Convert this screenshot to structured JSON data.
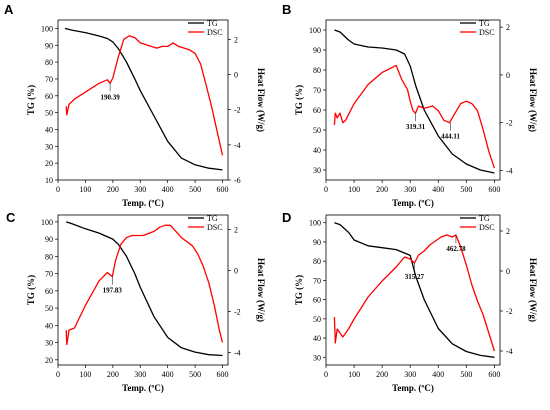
{
  "chart_data": [
    {
      "type": "line",
      "panel": "A",
      "xlabel": "Temp. (ºC)",
      "ylabel_left": "TG (%)",
      "ylabel_right": "Heat Flow (W/g)",
      "x_ticks": [
        "0",
        "100",
        "200",
        "300",
        "400",
        "500",
        "600"
      ],
      "y_left_ticks": [
        "10",
        "20",
        "30",
        "40",
        "50",
        "60",
        "70",
        "80",
        "90",
        "100"
      ],
      "y_right_ticks": [
        "2",
        "0",
        "-2",
        "-4",
        "-6"
      ],
      "xlim": [
        0,
        620
      ],
      "ylim_left": [
        10,
        105
      ],
      "ylim_right": [
        -6,
        3.1
      ],
      "legend": [
        "TG",
        "DSC"
      ],
      "legend_position": "top-right",
      "colors": {
        "TG": "#000000",
        "DSC": "#ff0000"
      },
      "series": [
        {
          "name": "TG",
          "axis": "left",
          "x": [
            25,
            50,
            100,
            150,
            180,
            200,
            220,
            250,
            280,
            300,
            350,
            400,
            450,
            500,
            550,
            600
          ],
          "values": [
            100,
            99,
            97.5,
            95.5,
            94,
            92,
            88,
            80,
            70,
            63,
            48,
            33,
            23,
            19,
            17,
            16
          ]
        },
        {
          "name": "DSC",
          "axis": "right",
          "x": [
            30,
            32,
            40,
            60,
            100,
            150,
            180,
            190,
            200,
            220,
            240,
            260,
            280,
            300,
            320,
            340,
            360,
            380,
            400,
            420,
            440,
            460,
            480,
            500,
            520,
            540,
            560,
            580,
            600
          ],
          "values": [
            -1.8,
            -2.3,
            -1.7,
            -1.4,
            -1.0,
            -0.5,
            -0.3,
            -0.5,
            -0.2,
            1.0,
            2.0,
            2.2,
            2.1,
            1.8,
            1.7,
            1.6,
            1.5,
            1.6,
            1.6,
            1.8,
            1.6,
            1.5,
            1.4,
            1.2,
            0.6,
            -0.6,
            -1.8,
            -3.2,
            -4.6
          ]
        }
      ],
      "annotations": [
        {
          "text": "190.39",
          "x": 190,
          "y": -0.5,
          "axis": "right"
        }
      ]
    },
    {
      "type": "line",
      "panel": "B",
      "xlabel": "Temp. (ºC)",
      "ylabel_left": "TG (%)",
      "ylabel_right": "Heat Flow (W/g)",
      "x_ticks": [
        "0",
        "100",
        "200",
        "300",
        "400",
        "500",
        "600"
      ],
      "y_left_ticks": [
        "30",
        "40",
        "50",
        "60",
        "70",
        "80",
        "90",
        "100"
      ],
      "y_right_ticks": [
        "2",
        "0",
        "-2",
        "-4"
      ],
      "xlim": [
        0,
        620
      ],
      "ylim_left": [
        25,
        105
      ],
      "ylim_right": [
        -4.4,
        2.3
      ],
      "legend": [
        "TG",
        "DSC"
      ],
      "legend_position": "top-right",
      "colors": {
        "TG": "#000000",
        "DSC": "#ff0000"
      },
      "series": [
        {
          "name": "TG",
          "axis": "left",
          "x": [
            30,
            50,
            80,
            100,
            150,
            200,
            250,
            280,
            300,
            320,
            350,
            400,
            450,
            500,
            550,
            600
          ],
          "values": [
            100,
            99,
            95,
            93,
            91.5,
            91,
            90,
            88,
            82,
            72,
            60,
            47,
            38,
            33,
            30,
            28.5
          ]
        },
        {
          "name": "DSC",
          "axis": "right",
          "x": [
            30,
            33,
            40,
            50,
            60,
            70,
            100,
            150,
            200,
            250,
            270,
            290,
            300,
            310,
            319,
            330,
            350,
            380,
            400,
            420,
            440,
            460,
            480,
            500,
            520,
            540,
            560,
            580,
            600
          ],
          "values": [
            -2.1,
            -1.6,
            -1.8,
            -1.6,
            -2.0,
            -1.9,
            -1.2,
            -0.4,
            0.1,
            0.4,
            -0.2,
            -0.6,
            -1.1,
            -1.5,
            -1.6,
            -1.3,
            -1.4,
            -1.3,
            -1.5,
            -1.9,
            -2.0,
            -1.6,
            -1.2,
            -1.1,
            -1.2,
            -1.5,
            -2.3,
            -3.2,
            -3.9
          ]
        }
      ],
      "annotations": [
        {
          "text": "319.31",
          "x": 319,
          "y": -1.6,
          "axis": "right"
        },
        {
          "text": "444.11",
          "x": 444,
          "y": -2.0,
          "axis": "right"
        }
      ]
    },
    {
      "type": "line",
      "panel": "C",
      "xlabel": "Temp. (ºC)",
      "ylabel_left": "TG (%)",
      "ylabel_right": "Heat Flow (W/g)",
      "x_ticks": [
        "0",
        "100",
        "200",
        "300",
        "400",
        "500",
        "600"
      ],
      "y_left_ticks": [
        "20",
        "30",
        "40",
        "50",
        "60",
        "70",
        "80",
        "90",
        "100"
      ],
      "y_right_ticks": [
        "2",
        "0",
        "-2",
        "-4"
      ],
      "xlim": [
        0,
        620
      ],
      "ylim_left": [
        17,
        104
      ],
      "ylim_right": [
        -4.6,
        2.7
      ],
      "legend": [
        "TG",
        "DSC"
      ],
      "legend_position": "top-right",
      "colors": {
        "TG": "#000000",
        "DSC": "#ff0000"
      },
      "series": [
        {
          "name": "TG",
          "axis": "left",
          "x": [
            30,
            50,
            100,
            150,
            200,
            220,
            250,
            280,
            300,
            350,
            400,
            450,
            500,
            550,
            600
          ],
          "values": [
            100,
            99,
            96,
            93.5,
            90,
            87,
            80,
            70,
            62,
            45,
            33,
            27,
            24.5,
            23,
            22.5
          ]
        },
        {
          "name": "DSC",
          "axis": "right",
          "x": [
            30,
            32,
            40,
            60,
            100,
            150,
            180,
            198,
            210,
            230,
            250,
            270,
            290,
            310,
            330,
            350,
            370,
            390,
            410,
            430,
            450,
            470,
            490,
            510,
            530,
            550,
            570,
            590,
            600
          ],
          "values": [
            -2.9,
            -3.6,
            -2.9,
            -2.8,
            -1.7,
            -0.5,
            -0.1,
            -0.3,
            0.5,
            1.3,
            1.6,
            1.7,
            1.7,
            1.7,
            1.8,
            1.9,
            2.1,
            2.2,
            2.2,
            1.9,
            1.6,
            1.4,
            1.2,
            0.8,
            0.2,
            -0.6,
            -1.7,
            -3.0,
            -3.5
          ]
        }
      ],
      "annotations": [
        {
          "text": "197.83",
          "x": 198,
          "y": -0.3,
          "axis": "right"
        }
      ]
    },
    {
      "type": "line",
      "panel": "D",
      "xlabel": "Temp. (ºC)",
      "ylabel_left": "TG (%)",
      "ylabel_right": "Heat Flow (W/g)",
      "x_ticks": [
        "0",
        "100",
        "200",
        "300",
        "400",
        "500",
        "600"
      ],
      "y_left_ticks": [
        "30",
        "40",
        "50",
        "60",
        "70",
        "80",
        "90",
        "100"
      ],
      "y_right_ticks": [
        "2",
        "0",
        "-2",
        "-4"
      ],
      "xlim": [
        0,
        620
      ],
      "ylim_left": [
        26,
        104
      ],
      "ylim_right": [
        -4.7,
        2.8
      ],
      "legend": [
        "TG",
        "DSC"
      ],
      "legend_position": "top-right",
      "colors": {
        "TG": "#000000",
        "DSC": "#ff0000"
      },
      "series": [
        {
          "name": "TG",
          "axis": "left",
          "x": [
            30,
            50,
            80,
            100,
            150,
            200,
            250,
            300,
            320,
            350,
            400,
            450,
            500,
            550,
            600
          ],
          "values": [
            100,
            99,
            95,
            91,
            88,
            87,
            86,
            83,
            72,
            60,
            45,
            37,
            33,
            31,
            30
          ]
        },
        {
          "name": "DSC",
          "axis": "right",
          "x": [
            30,
            33,
            40,
            60,
            80,
            100,
            150,
            200,
            250,
            280,
            300,
            315,
            330,
            350,
            370,
            390,
            410,
            430,
            450,
            463,
            480,
            500,
            520,
            540,
            560,
            580,
            600
          ],
          "values": [
            -2.3,
            -3.6,
            -2.9,
            -3.3,
            -2.9,
            -2.4,
            -1.3,
            -0.5,
            0.2,
            0.7,
            0.6,
            0.4,
            0.8,
            1.0,
            1.3,
            1.5,
            1.7,
            1.8,
            1.7,
            1.8,
            1.2,
            0.3,
            -0.7,
            -1.5,
            -2.2,
            -3.1,
            -4.0
          ]
        }
      ],
      "annotations": [
        {
          "text": "315.27",
          "x": 315,
          "y": 0.4,
          "axis": "right"
        },
        {
          "text": "462.78",
          "x": 463,
          "y": 1.8,
          "axis": "right"
        }
      ]
    }
  ]
}
